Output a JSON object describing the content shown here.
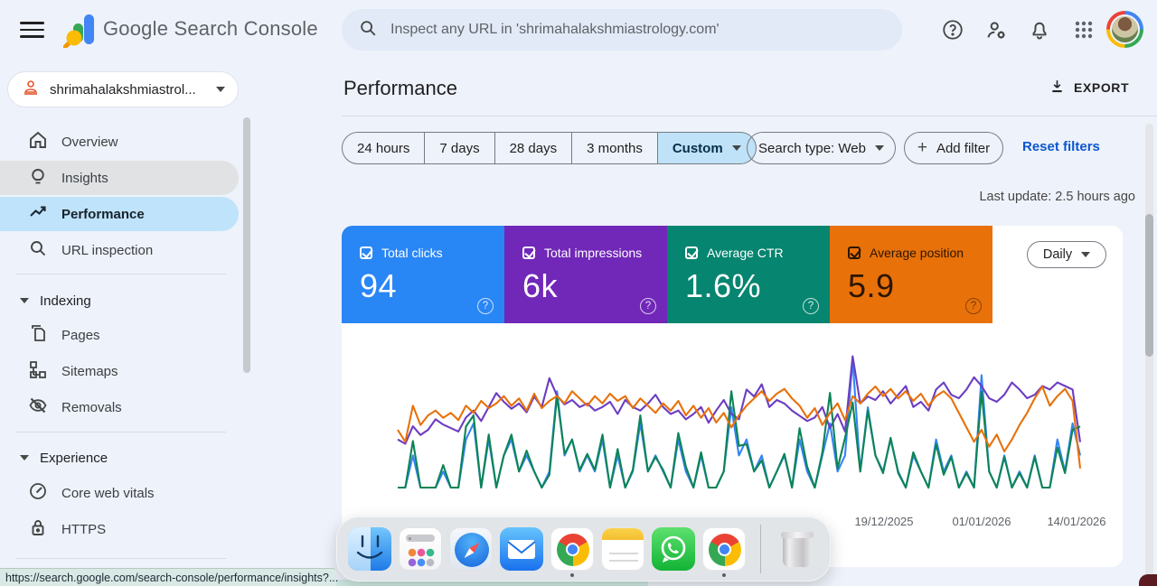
{
  "topbar": {
    "product_name": "Google Search Console",
    "search_placeholder": "Inspect any URL in 'shrimahalakshmiastrology.com'"
  },
  "property": {
    "name": "shrimahalakshmiastrol..."
  },
  "sidebar": {
    "items": [
      {
        "label": "Overview"
      },
      {
        "label": "Insights"
      },
      {
        "label": "Performance"
      },
      {
        "label": "URL inspection"
      },
      {
        "label": "Pages"
      },
      {
        "label": "Sitemaps"
      },
      {
        "label": "Removals"
      },
      {
        "label": "Core web vitals"
      },
      {
        "label": "HTTPS"
      }
    ],
    "sections": [
      {
        "label": "Indexing"
      },
      {
        "label": "Experience"
      }
    ]
  },
  "main": {
    "title": "Performance",
    "export_label": "EXPORT",
    "date_tabs": [
      "24 hours",
      "7 days",
      "28 days",
      "3 months",
      "Custom"
    ],
    "active_tab": "Custom",
    "search_type_label": "Search type: Web",
    "add_filter_label": "Add filter",
    "plus_glyph": "+",
    "reset_filters_label": "Reset filters",
    "last_update": "Last update: 2.5 hours ago",
    "granularity": "Daily",
    "help_glyph": "?"
  },
  "cards": [
    {
      "label": "Total clicks",
      "value": "94",
      "color": "#2986f5",
      "text_color": "#ffffff"
    },
    {
      "label": "Total impressions",
      "value": "6k",
      "color": "#7127b8",
      "text_color": "#ffffff"
    },
    {
      "label": "Average CTR",
      "value": "1.6%",
      "color": "#068570",
      "text_color": "#ffffff"
    },
    {
      "label": "Average position",
      "value": "5.9",
      "color": "#e8710a",
      "text_color": "#2b1600"
    }
  ],
  "chart_data": {
    "type": "line",
    "x_ticks": [
      {
        "label": "19/12/2025",
        "x": 600
      },
      {
        "label": "01/01/2026",
        "x": 708
      },
      {
        "label": "14/01/2026",
        "x": 813
      }
    ],
    "series": [
      {
        "key": "clicks",
        "name": "Total clicks",
        "color": "#3584f4",
        "ylim": [
          0,
          9
        ],
        "values": [
          0,
          0,
          2,
          0,
          0,
          0,
          1,
          0,
          0,
          3,
          4,
          0,
          3,
          0,
          2,
          3,
          1,
          2,
          1,
          0,
          1,
          6,
          2,
          3,
          1,
          2,
          1,
          3,
          0,
          2,
          0,
          1,
          4,
          1,
          2,
          1,
          0,
          3,
          1,
          0,
          2,
          0,
          0,
          1,
          5,
          2,
          3,
          1,
          2,
          0,
          1,
          2,
          0,
          3,
          1,
          0,
          2,
          4,
          1,
          2,
          8,
          1,
          5,
          2,
          1,
          3,
          1,
          0,
          2,
          1,
          0,
          3,
          1,
          2,
          0,
          1,
          0,
          7,
          1,
          0,
          2,
          0,
          1,
          0,
          2,
          0,
          0,
          3,
          1,
          4,
          2
        ]
      },
      {
        "key": "impressions",
        "name": "Total impressions",
        "color": "#6c3dc2",
        "ylim": [
          0,
          165
        ],
        "values": [
          55,
          50,
          70,
          60,
          66,
          78,
          72,
          68,
          64,
          80,
          88,
          76,
          92,
          108,
          98,
          90,
          96,
          86,
          104,
          92,
          125,
          105,
          95,
          100,
          92,
          96,
          88,
          92,
          98,
          84,
          100,
          92,
          88,
          96,
          106,
          92,
          84,
          88,
          78,
          84,
          92,
          74,
          88,
          100,
          84,
          78,
          112,
          104,
          118,
          92,
          100,
          96,
          88,
          82,
          76,
          80,
          92,
          68,
          84,
          64,
          150,
          96,
          104,
          100,
          110,
          96,
          106,
          116,
          92,
          98,
          88,
          112,
          120,
          106,
          102,
          112,
          126,
          116,
          102,
          98,
          106,
          120,
          112,
          102,
          106,
          116,
          112,
          120,
          116,
          112,
          52
        ]
      },
      {
        "key": "ctr",
        "name": "Average CTR",
        "color": "#0d8456",
        "ylim": [
          0,
          9
        ],
        "values": [
          0,
          0,
          2.9,
          0,
          0,
          0,
          1.4,
          0,
          0,
          3.8,
          4.5,
          0,
          3.3,
          0,
          2,
          3.3,
          1,
          2.3,
          1,
          0,
          0.8,
          5.7,
          2.1,
          3,
          1.1,
          2.1,
          1.1,
          3.3,
          0,
          2.4,
          0,
          1.1,
          4.5,
          1,
          1.9,
          1.1,
          0,
          3.4,
          1.3,
          0,
          2.2,
          0,
          0,
          1,
          6,
          2.6,
          2.7,
          1,
          1.7,
          0,
          1,
          2.1,
          0,
          3.7,
          1.3,
          0,
          2.2,
          5.9,
          1.2,
          3.1,
          5.3,
          1,
          4.8,
          2,
          0.9,
          3.1,
          0.9,
          0,
          2.2,
          1,
          0,
          2.7,
          0.8,
          1.9,
          0,
          0.9,
          0,
          6,
          1,
          0,
          1.9,
          0,
          0.9,
          0,
          1.9,
          0,
          0,
          2.5,
          0.9,
          3.6,
          3.8
        ]
      },
      {
        "key": "position",
        "name": "Average position",
        "color": "#e8710a",
        "ylim": [
          10,
          4
        ],
        "values": [
          7.6,
          8.1,
          6.6,
          7.4,
          7.0,
          6.8,
          7.1,
          6.9,
          7.2,
          6.6,
          6.9,
          6.4,
          6.7,
          6.5,
          6.2,
          6.6,
          6.3,
          6.8,
          6.1,
          6.7,
          6.4,
          6.2,
          6.5,
          6.0,
          6.3,
          6.6,
          6.2,
          6.5,
          6.1,
          6.4,
          6.2,
          6.7,
          6.3,
          6.6,
          6.9,
          6.5,
          6.8,
          6.4,
          7.0,
          6.6,
          7.1,
          6.7,
          7.3,
          6.9,
          7.5,
          7.0,
          6.6,
          6.3,
          6.0,
          6.4,
          6.1,
          5.9,
          6.3,
          6.6,
          7.1,
          6.7,
          7.4,
          6.9,
          6.5,
          7.2,
          6.2,
          6.5,
          6.1,
          5.8,
          6.2,
          5.9,
          6.3,
          6.0,
          6.4,
          6.1,
          6.6,
          6.2,
          6.0,
          6.3,
          6.9,
          7.5,
          8.1,
          7.6,
          8.3,
          7.8,
          8.5,
          8.0,
          7.4,
          6.9,
          6.3,
          5.8,
          6.6,
          6.2,
          5.9,
          6.4,
          9.2
        ]
      }
    ]
  },
  "dock": {
    "apps": [
      "Finder",
      "Launchpad",
      "Safari",
      "Mail",
      "Chrome",
      "Notes",
      "WhatsApp",
      "Chrome",
      "Trash"
    ],
    "running": [
      "Finder",
      "Chrome",
      "Chrome"
    ]
  },
  "statusbar": {
    "url": "https://search.google.com/search-console/performance/insights?..."
  }
}
